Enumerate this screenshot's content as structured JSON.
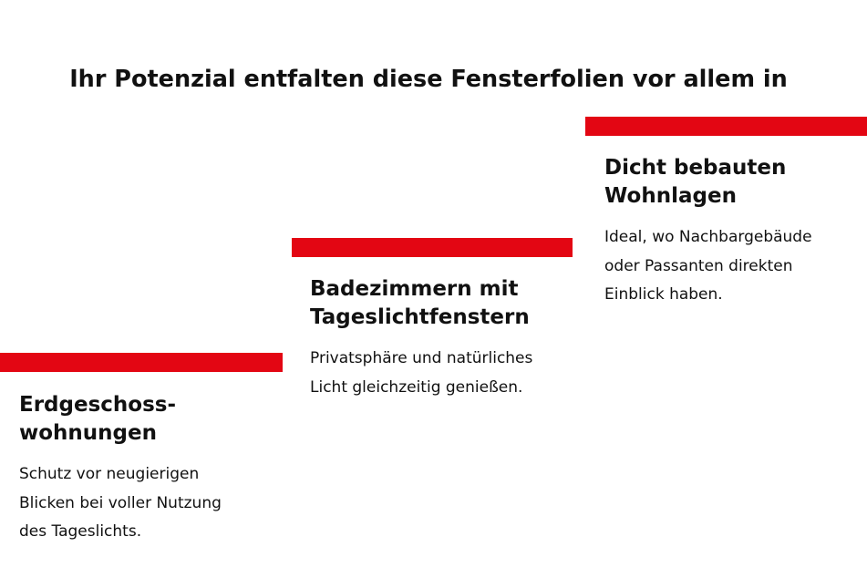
{
  "title": "Ihr Potenzial entfalten diese Fensterfolien vor allem in",
  "accent_color": "#e30613",
  "steps": [
    {
      "heading_lines": [
        "Erdgeschoss-",
        "wohnungen"
      ],
      "text_lines": [
        "Schutz vor neugierigen",
        "Blicken bei voller Nutzung",
        "des Tageslichts."
      ]
    },
    {
      "heading_lines": [
        "Badezimmern mit",
        "Tageslichtfenstern"
      ],
      "text_lines": [
        "Privatsphäre und natürliches",
        "Licht gleichzeitig genießen."
      ]
    },
    {
      "heading_lines": [
        "Dicht bebauten",
        "Wohnlagen"
      ],
      "text_lines": [
        "Ideal, wo Nachbargebäude",
        "oder Passanten direkten",
        "Einblick haben."
      ]
    }
  ]
}
